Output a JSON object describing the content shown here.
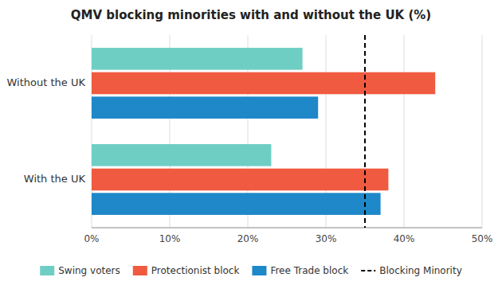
{
  "chart_data": {
    "type": "bar",
    "orientation": "horizontal",
    "title": "QMV blocking minorities with and without the UK (%)",
    "categories": [
      "Without the UK",
      "With the UK"
    ],
    "series": [
      {
        "name": "Swing voters",
        "color": "#6ECEC4",
        "values": [
          27,
          23
        ]
      },
      {
        "name": "Protectionist block",
        "color": "#F05A40",
        "values": [
          44,
          38
        ]
      },
      {
        "name": "Free Trade block",
        "color": "#1E88C8",
        "values": [
          29,
          37
        ]
      }
    ],
    "reference_lines": [
      {
        "name": "Blocking Minority",
        "value": 35,
        "color": "#000000",
        "line_style": "dashed"
      }
    ],
    "xlim": [
      0,
      50
    ],
    "xticks": [
      {
        "value": 0,
        "label": "0%"
      },
      {
        "value": 10,
        "label": "10%"
      },
      {
        "value": 20,
        "label": "20%"
      },
      {
        "value": 30,
        "label": "30%"
      },
      {
        "value": 40,
        "label": "40%"
      },
      {
        "value": 50,
        "label": "50%"
      }
    ],
    "grid": true,
    "legend": "bottom"
  }
}
